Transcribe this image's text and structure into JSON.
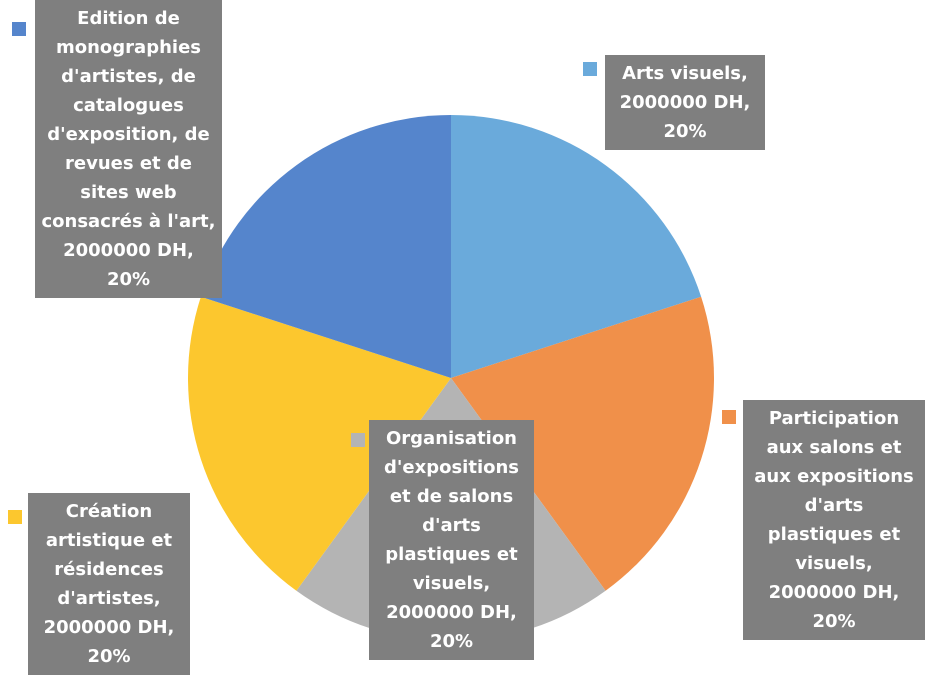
{
  "chart_data": {
    "type": "pie",
    "categories": [
      "Arts visuels",
      "Participation aux salons et aux expositions d'arts plastiques et visuels",
      "Organisation d'expositions et de salons d'arts plastiques et visuels",
      "Création artistique et résidences d'artistes",
      "Edition de monographies d'artistes, de catalogues d'exposition, de revues et de sites web consacrés à l'art"
    ],
    "values": [
      2000000,
      2000000,
      2000000,
      2000000,
      2000000
    ],
    "value_labels": [
      "Arts visuels, 2000000 DH, 20%",
      "Participation aux salons et aux expositions d'arts plastiques et visuels, 2000000 DH, 20%",
      "Organisation d'expositions et de salons d'arts plastiques et visuels, 2000000 DH, 20%",
      "Création artistique et résidences d'artistes, 2000000 DH, 20%",
      "Edition de monographies d'artistes, de catalogues d'exposition, de revues et de sites web consacrés à l'art, 2000000 DH, 20%"
    ],
    "colors": [
      "#6aaadb",
      "#f0904a",
      "#b4b4b4",
      "#fcc72e",
      "#5585cc"
    ]
  }
}
